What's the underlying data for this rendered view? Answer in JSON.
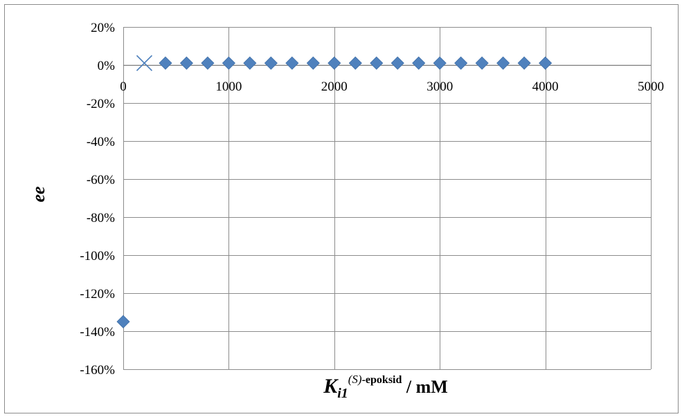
{
  "chart_data": {
    "type": "scatter",
    "title": "",
    "ylabel": "ee",
    "xlabel": {
      "symbol": "K",
      "subscript": "i1",
      "superscript_italic": "(S)",
      "superscript": "-epoksid",
      "unit": " / mM"
    },
    "xlim": [
      0,
      5000
    ],
    "ylim": [
      -160,
      20
    ],
    "x_ticks": [
      "0",
      "1000",
      "2000",
      "3000",
      "4000",
      "5000"
    ],
    "x_tick_values": [
      0,
      1000,
      2000,
      3000,
      4000,
      5000
    ],
    "y_ticks": [
      "20%",
      "0%",
      "-20%",
      "-40%",
      "-60%",
      "-80%",
      "-100%",
      "-120%",
      "-140%",
      "-160%"
    ],
    "y_tick_values": [
      20,
      0,
      -20,
      -40,
      -60,
      -80,
      -100,
      -120,
      -140,
      -160
    ],
    "grid": true,
    "legend": "none",
    "series": [
      {
        "marker": "diamond",
        "color": "#4f81bd",
        "points": [
          [
            0,
            -135
          ],
          [
            400,
            1
          ],
          [
            600,
            1
          ],
          [
            800,
            1
          ],
          [
            1000,
            1
          ],
          [
            1200,
            1
          ],
          [
            1400,
            1
          ],
          [
            1600,
            1
          ],
          [
            1800,
            1
          ],
          [
            2000,
            1
          ],
          [
            2200,
            1
          ],
          [
            2400,
            1
          ],
          [
            2600,
            1
          ],
          [
            2800,
            1
          ],
          [
            3000,
            1
          ],
          [
            3200,
            1
          ],
          [
            3400,
            1
          ],
          [
            3600,
            1
          ],
          [
            3800,
            1
          ],
          [
            4000,
            1
          ]
        ]
      },
      {
        "marker": "x",
        "color": "#4f81bd",
        "points": [
          [
            200,
            1
          ]
        ]
      }
    ],
    "colors": {
      "grid": "#8c8c8c",
      "frame": "#8c8c8c"
    }
  }
}
